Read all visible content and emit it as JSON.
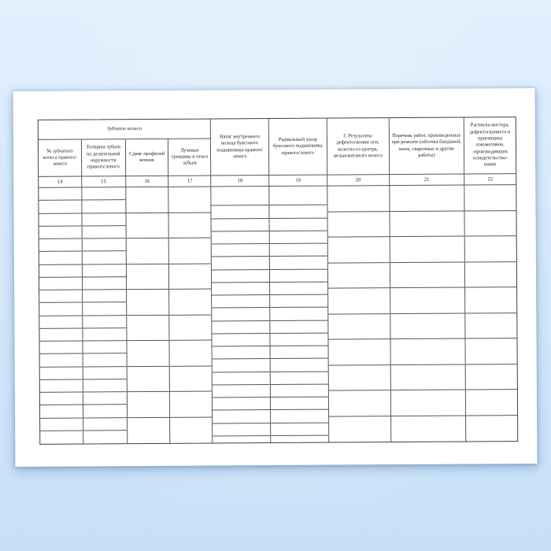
{
  "document": {
    "group_header": "Зубчатое колесо",
    "columns": [
      {
        "num": "14",
        "label": "№ зубчатого колеса правого/ левого",
        "group": "gear-wheel",
        "rows": "double"
      },
      {
        "num": "15",
        "label": "Толщина зубьев по делительной окружности правого/левого",
        "group": "gear-wheel",
        "rows": "double"
      },
      {
        "num": "16",
        "label": "Сдвиг профилей венцов",
        "group": "gear-wheel",
        "rows": "single"
      },
      {
        "num": "17",
        "label": "Лучевые трещины и откол зубьев",
        "group": "gear-wheel",
        "rows": "single"
      },
      {
        "num": "18",
        "label": "Натяг внутреннего кольца буксового подшипника правого/левого",
        "group": null,
        "rows": "staggered-double"
      },
      {
        "num": "19",
        "label": "Радиальный зазор буксового подшипника правого/левого",
        "group": null,
        "rows": "staggered-double"
      },
      {
        "num": "20",
        "label": "С Результаты дефектоскопии оси, колесно-го центра, цельнокатаного колеса",
        "group": null,
        "rows": "single"
      },
      {
        "num": "21",
        "label": "Перечень работ, произведенных при ремонте (обточка бандажей, шеек, сварочные и другие работы)",
        "group": null,
        "rows": "single"
      },
      {
        "num": "22",
        "label": "Расписка мастера, дефектоскописта и приемщика локомотивов, -производивших освидетельство- вание",
        "group": null,
        "rows": "single"
      }
    ],
    "body_blocks": 10,
    "body_cells_empty": true,
    "colors": {
      "background_top": "#e2f0fd",
      "background_bottom": "#c7dff7",
      "paper": "#ffffff",
      "table_line": "#555555",
      "text": "#1c1c1c"
    }
  }
}
